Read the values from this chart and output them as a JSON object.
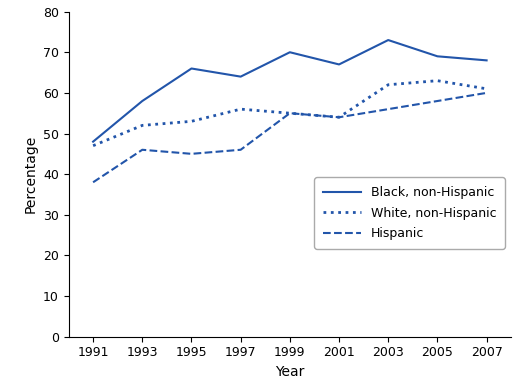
{
  "years": [
    1991,
    1993,
    1995,
    1997,
    1999,
    2001,
    2003,
    2005,
    2007
  ],
  "black_non_hispanic": [
    48,
    58,
    66,
    64,
    70,
    67,
    73,
    69,
    68
  ],
  "white_non_hispanic": [
    47,
    52,
    53,
    56,
    55,
    54,
    62,
    63,
    61
  ],
  "hispanic": [
    38,
    46,
    45,
    46,
    55,
    54,
    56,
    58,
    60
  ],
  "xlabel": "Year",
  "ylabel": "Percentage",
  "ylim": [
    0,
    80
  ],
  "yticks": [
    0,
    10,
    20,
    30,
    40,
    50,
    60,
    70,
    80
  ],
  "xticks": [
    1991,
    1993,
    1995,
    1997,
    1999,
    2001,
    2003,
    2005,
    2007
  ],
  "line_color": "#2255AA",
  "legend_labels": [
    "Black, non-Hispanic",
    "White, non-Hispanic",
    "Hispanic"
  ]
}
